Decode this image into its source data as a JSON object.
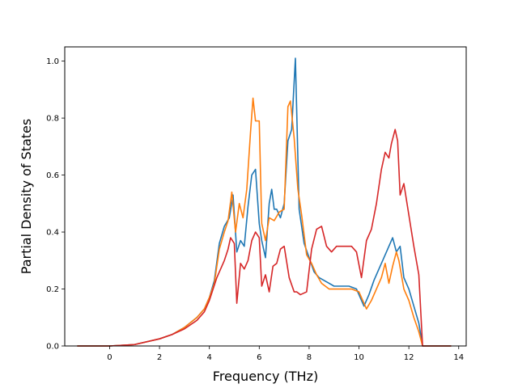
{
  "chart_data": {
    "type": "line",
    "title": "",
    "xlabel": "Frequency (THz)",
    "ylabel": "Partial Density of States",
    "xlim": [
      -1.8,
      14.3
    ],
    "ylim": [
      0,
      1.05
    ],
    "x_ticks": [
      0,
      2,
      4,
      6,
      8,
      10,
      12,
      14
    ],
    "y_ticks": [
      0.0,
      0.2,
      0.4,
      0.6,
      0.8,
      1.0
    ],
    "x_tick_labels": [
      "0",
      "2",
      "4",
      "6",
      "8",
      "10",
      "12",
      "14"
    ],
    "y_tick_labels": [
      "0.0",
      "0.2",
      "0.4",
      "0.6",
      "0.8",
      "1.0"
    ],
    "grid": false,
    "legend": "none",
    "series": [
      {
        "color": "#1f77b4",
        "x": [
          -1.3,
          0,
          1,
          2,
          2.5,
          3,
          3.5,
          3.8,
          4,
          4.2,
          4.4,
          4.6,
          4.8,
          4.95,
          5.1,
          5.25,
          5.4,
          5.55,
          5.7,
          5.85,
          6.0,
          6.1,
          6.25,
          6.4,
          6.5,
          6.6,
          6.7,
          6.85,
          7.0,
          7.15,
          7.3,
          7.45,
          7.6,
          7.8,
          8.0,
          8.2,
          8.4,
          8.6,
          8.8,
          9.0,
          9.3,
          9.6,
          9.9,
          10.2,
          10.4,
          10.6,
          10.8,
          11.0,
          11.2,
          11.35,
          11.5,
          11.65,
          11.8,
          12.0,
          12.2,
          12.4,
          12.55,
          12.8,
          13.2,
          13.7
        ],
        "y": [
          0,
          0,
          0.005,
          0.025,
          0.04,
          0.065,
          0.1,
          0.13,
          0.17,
          0.23,
          0.36,
          0.42,
          0.45,
          0.53,
          0.33,
          0.37,
          0.35,
          0.49,
          0.6,
          0.62,
          0.43,
          0.37,
          0.31,
          0.5,
          0.55,
          0.48,
          0.48,
          0.45,
          0.5,
          0.72,
          0.76,
          1.01,
          0.48,
          0.36,
          0.31,
          0.26,
          0.24,
          0.23,
          0.22,
          0.21,
          0.21,
          0.21,
          0.2,
          0.14,
          0.18,
          0.23,
          0.27,
          0.31,
          0.35,
          0.38,
          0.33,
          0.35,
          0.24,
          0.2,
          0.14,
          0.08,
          0,
          0,
          0,
          0
        ]
      },
      {
        "color": "#ff7f0e",
        "x": [
          -1.3,
          0,
          1,
          2,
          2.5,
          3,
          3.5,
          3.8,
          4,
          4.2,
          4.4,
          4.6,
          4.75,
          4.9,
          5.05,
          5.2,
          5.35,
          5.5,
          5.65,
          5.75,
          5.85,
          6.0,
          6.1,
          6.25,
          6.4,
          6.6,
          6.8,
          7.0,
          7.15,
          7.25,
          7.4,
          7.55,
          7.7,
          7.9,
          8.1,
          8.3,
          8.5,
          8.8,
          9.1,
          9.4,
          9.7,
          10.0,
          10.3,
          10.5,
          10.7,
          10.9,
          11.05,
          11.2,
          11.35,
          11.5,
          11.6,
          11.8,
          12.0,
          12.2,
          12.4,
          12.55,
          12.8,
          13.2,
          13.7
        ],
        "y": [
          0,
          0,
          0.005,
          0.025,
          0.04,
          0.065,
          0.1,
          0.13,
          0.17,
          0.22,
          0.34,
          0.4,
          0.44,
          0.54,
          0.4,
          0.5,
          0.45,
          0.55,
          0.75,
          0.87,
          0.79,
          0.79,
          0.43,
          0.37,
          0.45,
          0.44,
          0.47,
          0.48,
          0.84,
          0.86,
          0.73,
          0.55,
          0.46,
          0.32,
          0.29,
          0.25,
          0.22,
          0.2,
          0.2,
          0.2,
          0.2,
          0.19,
          0.13,
          0.16,
          0.2,
          0.24,
          0.29,
          0.22,
          0.28,
          0.33,
          0.3,
          0.2,
          0.16,
          0.1,
          0.05,
          0,
          0,
          0,
          0
        ]
      },
      {
        "color": "#d62728",
        "x": [
          -1.3,
          0,
          1,
          2,
          2.5,
          3,
          3.5,
          3.8,
          4,
          4.3,
          4.6,
          4.75,
          4.85,
          5.0,
          5.1,
          5.25,
          5.4,
          5.55,
          5.7,
          5.85,
          6.0,
          6.1,
          6.25,
          6.4,
          6.55,
          6.7,
          6.85,
          7.0,
          7.2,
          7.4,
          7.5,
          7.65,
          7.9,
          8.1,
          8.3,
          8.5,
          8.7,
          8.9,
          9.1,
          9.4,
          9.7,
          9.9,
          10.1,
          10.3,
          10.5,
          10.7,
          10.9,
          11.05,
          11.2,
          11.3,
          11.45,
          11.55,
          11.65,
          11.8,
          12.0,
          12.2,
          12.4,
          12.55,
          12.8,
          13.2,
          13.7
        ],
        "y": [
          0,
          0,
          0.005,
          0.025,
          0.04,
          0.06,
          0.09,
          0.12,
          0.16,
          0.24,
          0.3,
          0.34,
          0.38,
          0.36,
          0.15,
          0.29,
          0.27,
          0.3,
          0.37,
          0.4,
          0.38,
          0.21,
          0.25,
          0.19,
          0.28,
          0.29,
          0.34,
          0.35,
          0.24,
          0.19,
          0.19,
          0.18,
          0.19,
          0.34,
          0.41,
          0.42,
          0.35,
          0.33,
          0.35,
          0.35,
          0.35,
          0.33,
          0.24,
          0.37,
          0.41,
          0.5,
          0.62,
          0.68,
          0.66,
          0.71,
          0.76,
          0.72,
          0.53,
          0.57,
          0.46,
          0.35,
          0.25,
          0,
          0,
          0,
          0
        ]
      }
    ]
  }
}
